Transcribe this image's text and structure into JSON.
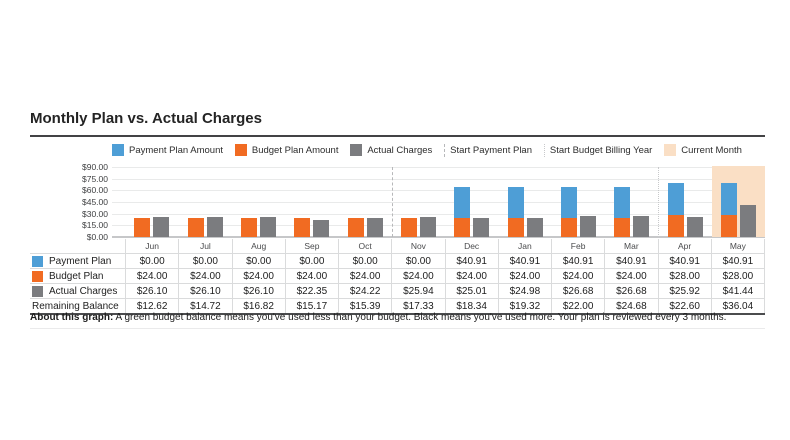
{
  "title": "Monthly Plan vs. Actual Charges",
  "colors": {
    "payment_blue": "#4e9ed6",
    "budget_orange": "#f16b22",
    "actual_gray": "#7b7c7f",
    "current_month_peach": "#fadfc5",
    "marker_dashed_gray": "#b7b8ba",
    "marker_dotted_gray": "#c8c9cb"
  },
  "legend": [
    {
      "label": "Payment Plan Amount",
      "swatch": "square",
      "color": "#4e9ed6"
    },
    {
      "label": "Budget Plan Amount",
      "swatch": "square",
      "color": "#f16b22"
    },
    {
      "label": "Actual Charges",
      "swatch": "square",
      "color": "#7b7c7f"
    },
    {
      "label": "Start Payment Plan",
      "swatch": "dashed-line",
      "color": "#b7b8ba"
    },
    {
      "label": "Start Budget Billing Year",
      "swatch": "dotted-line",
      "color": "#c8c9cb"
    },
    {
      "label": "Current Month",
      "swatch": "square",
      "color": "#fadfc5"
    }
  ],
  "chart_data": {
    "type": "bar",
    "title": "Monthly Plan vs. Actual Charges",
    "categories": [
      "Jun",
      "Jul",
      "Aug",
      "Sep",
      "Oct",
      "Nov",
      "Dec",
      "Jan",
      "Feb",
      "Mar",
      "Apr",
      "May"
    ],
    "series": [
      {
        "name": "Payment Plan Amount",
        "color": "#4e9ed6",
        "stacked_on": "Budget Plan Amount",
        "values": [
          0,
          0,
          0,
          0,
          0,
          0,
          40.91,
          40.91,
          40.91,
          40.91,
          40.91,
          40.91
        ]
      },
      {
        "name": "Budget Plan Amount",
        "color": "#f16b22",
        "values": [
          24.0,
          24.0,
          24.0,
          24.0,
          24.0,
          24.0,
          24.0,
          24.0,
          24.0,
          24.0,
          28.0,
          28.0
        ]
      },
      {
        "name": "Actual Charges",
        "color": "#7b7c7f",
        "values": [
          26.1,
          26.1,
          26.1,
          22.35,
          24.22,
          25.94,
          25.01,
          24.98,
          26.68,
          26.68,
          25.92,
          41.44
        ]
      }
    ],
    "ylim": [
      0,
      90
    ],
    "y_ticks": [
      "$90.00",
      "$75.00",
      "$60.00",
      "$45.00",
      "$30.00",
      "$15.00",
      "$0.00"
    ],
    "grid": true,
    "legend_position": "top",
    "markers": {
      "start_payment_plan": {
        "style": "dashed",
        "between": [
          "Oct",
          "Nov"
        ]
      },
      "start_budget_billing_year": {
        "style": "dotted",
        "between": [
          "Mar",
          "Apr"
        ]
      },
      "current_month": "May"
    }
  },
  "table": {
    "columns": [
      "Jun",
      "Jul",
      "Aug",
      "Sep",
      "Oct",
      "Nov",
      "Dec",
      "Jan",
      "Feb",
      "Mar",
      "Apr",
      "May"
    ],
    "rows": [
      {
        "label": "Payment Plan",
        "swatch": "#4e9ed6",
        "values": [
          "$0.00",
          "$0.00",
          "$0.00",
          "$0.00",
          "$0.00",
          "$0.00",
          "$40.91",
          "$40.91",
          "$40.91",
          "$40.91",
          "$40.91",
          "$40.91"
        ]
      },
      {
        "label": "Budget Plan",
        "swatch": "#f16b22",
        "values": [
          "$24.00",
          "$24.00",
          "$24.00",
          "$24.00",
          "$24.00",
          "$24.00",
          "$24.00",
          "$24.00",
          "$24.00",
          "$24.00",
          "$28.00",
          "$28.00"
        ]
      },
      {
        "label": "Actual Charges",
        "swatch": "#7b7c7f",
        "values": [
          "$26.10",
          "$26.10",
          "$26.10",
          "$22.35",
          "$24.22",
          "$25.94",
          "$25.01",
          "$24.98",
          "$26.68",
          "$26.68",
          "$25.92",
          "$41.44"
        ]
      },
      {
        "label": "Remaining Balance",
        "swatch": null,
        "values": [
          "$12.62",
          "$14.72",
          "$16.82",
          "$15.17",
          "$15.39",
          "$17.33",
          "$18.34",
          "$19.32",
          "$22.00",
          "$24.68",
          "$22.60",
          "$36.04"
        ]
      }
    ]
  },
  "footer": {
    "bold": "About this graph:",
    "text": " A green budget balance means you've used less than your budget. Black means you've used more. Your plan is reviewed every 3 months."
  }
}
